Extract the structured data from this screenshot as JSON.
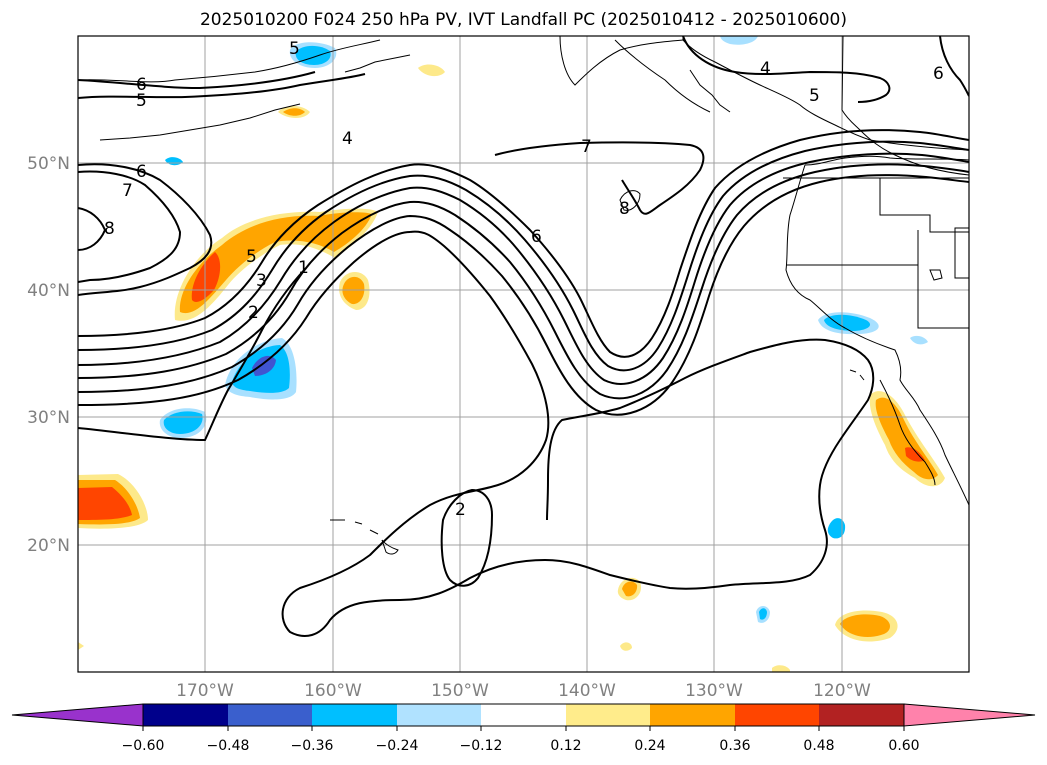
{
  "title": "2025010200 F024 250 hPa PV, IVT Landfall PC (2025010412 - 2025010600)",
  "map": {
    "lon_labels": [
      "170°W",
      "160°W",
      "150°W",
      "140°W",
      "130°W",
      "120°W"
    ],
    "lat_labels": [
      "50°N",
      "40°N",
      "30°N",
      "20°N"
    ],
    "contour_labels": [
      "6",
      "5",
      "6",
      "7",
      "8",
      "5",
      "3",
      "2",
      "1",
      "4",
      "6",
      "7",
      "8",
      "2",
      "4",
      "5",
      "6",
      "5"
    ],
    "colors": {
      "contour": "#000000",
      "grid": "#a0a0a0",
      "coast": "#000000",
      "pos_light": "#fde98a",
      "pos_mid": "#ffa500",
      "pos_strong": "#ff4500",
      "neg_light": "#a8e0ff",
      "neg_mid": "#00bfff",
      "neg_strong": "#4054d0"
    }
  },
  "colorbar": {
    "ticks": [
      "−0.60",
      "−0.48",
      "−0.36",
      "−0.24",
      "−0.12",
      "0.12",
      "0.24",
      "0.36",
      "0.48",
      "0.60"
    ],
    "colors": [
      "#9932cc",
      "#00008b",
      "#3a5fcd",
      "#00bfff",
      "#b0e2ff",
      "#ffffff",
      "#ffec8b",
      "#ffa500",
      "#ff4500",
      "#b22222",
      "#ff82ab",
      "#ff82ab"
    ],
    "extend": "both"
  }
}
